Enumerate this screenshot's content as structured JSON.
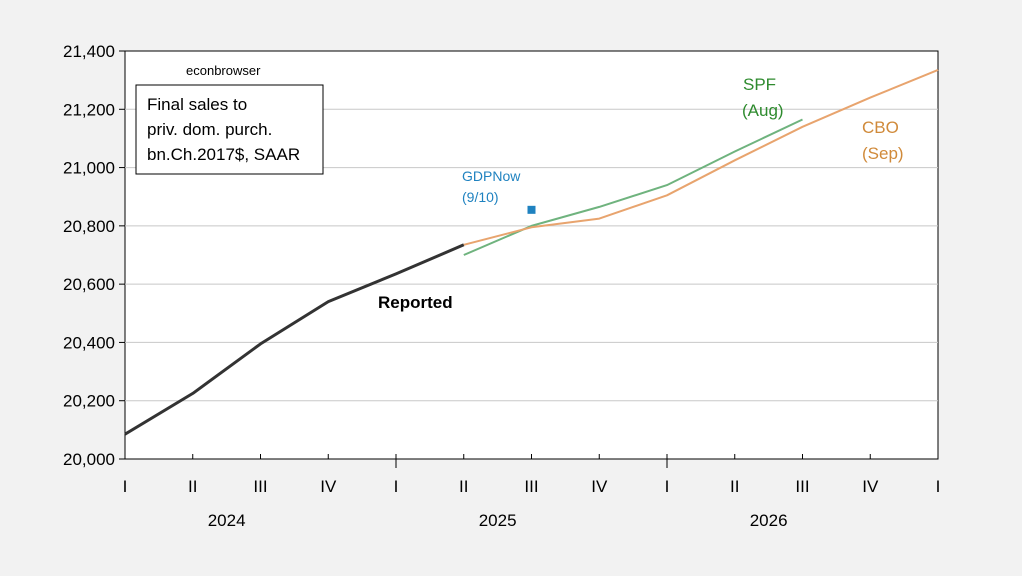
{
  "chart_data": {
    "type": "line",
    "title": "",
    "xlabel": "",
    "ylabel": "",
    "ylim": [
      20000,
      21400
    ],
    "yticks": [
      20000,
      20200,
      20400,
      20600,
      20800,
      21000,
      21200,
      21400
    ],
    "ytick_labels": [
      "20,000",
      "20,200",
      "20,400",
      "20,600",
      "20,800",
      "21,000",
      "21,200",
      "21,400"
    ],
    "x_quarter_labels": [
      "I",
      "II",
      "III",
      "IV",
      "I",
      "II",
      "III",
      "IV",
      "I",
      "II",
      "III",
      "IV",
      "I"
    ],
    "x_year_labels": [
      {
        "label": "2024",
        "center": 1.5
      },
      {
        "label": "2025",
        "center": 5.5
      },
      {
        "label": "2026",
        "center": 9.5
      }
    ],
    "grid": true,
    "legend": {
      "lines": [
        "Final sales to",
        "priv. dom. purch.",
        "bn.Ch.2017$, SAAR"
      ],
      "placement": "top-left"
    },
    "watermark": "econbrowser",
    "series": [
      {
        "name": "Reported",
        "color": "#333333",
        "x": [
          "2024Q1",
          "2024Q2",
          "2024Q3",
          "2024Q4",
          "2025Q1",
          "2025Q2"
        ],
        "values": [
          20085,
          20225,
          20395,
          20540,
          20635,
          20735
        ]
      },
      {
        "name": "SPF (Aug)",
        "color": "#6fb37e",
        "x": [
          "2025Q2",
          "2025Q3",
          "2025Q4",
          "2026Q1",
          "2026Q2",
          "2026Q3"
        ],
        "values": [
          20700,
          20800,
          20865,
          20940,
          21055,
          21165
        ]
      },
      {
        "name": "CBO (Sep)",
        "color": "#e8a46e",
        "x": [
          "2025Q2",
          "2025Q3",
          "2025Q4",
          "2026Q1",
          "2026Q2",
          "2026Q3",
          "2026Q4",
          "2027Q1"
        ],
        "values": [
          20735,
          20795,
          20825,
          20905,
          21025,
          21140,
          21240,
          21335
        ]
      },
      {
        "name": "GDPNow (9/10)",
        "color": "#1f82c0",
        "x": [
          "2025Q3"
        ],
        "values": [
          20855
        ]
      }
    ],
    "annotations": [
      {
        "target": "Reported",
        "lines": [
          "Reported"
        ],
        "color": "#000000",
        "bold": true
      },
      {
        "target": "SPF (Aug)",
        "lines": [
          "SPF",
          "(Aug)"
        ],
        "color": "#2e8b2e",
        "bold": false
      },
      {
        "target": "CBO (Sep)",
        "lines": [
          "CBO",
          "(Sep)"
        ],
        "color": "#d08a3a",
        "bold": false
      },
      {
        "target": "GDPNow (9/10)",
        "lines": [
          "GDPNow",
          "(9/10)"
        ],
        "color": "#1f82c0",
        "bold": false
      }
    ]
  }
}
